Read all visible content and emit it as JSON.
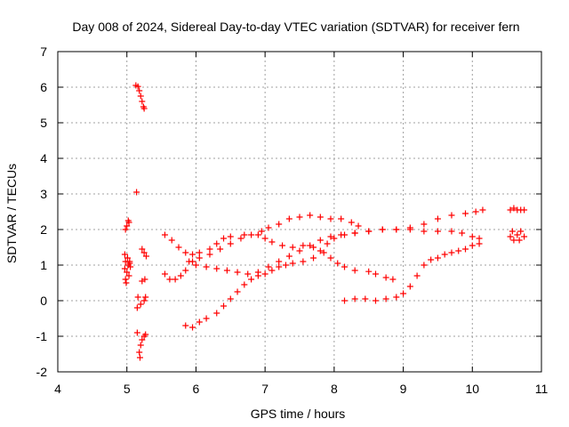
{
  "chart_data": {
    "type": "scatter",
    "title": "Day 008 of 2024, Sidereal Day-to-day VTEC variation (SDTVAR) for receiver fern",
    "xlabel": "GPS time / hours",
    "ylabel": "SDTVAR / TECUs",
    "xlim": [
      4,
      11
    ],
    "ylim": [
      -2,
      7
    ],
    "xticks": [
      "4",
      "5",
      "6",
      "7",
      "8",
      "9",
      "10",
      "11"
    ],
    "yticks": [
      "-2",
      "-1",
      "0",
      "1",
      "2",
      "3",
      "4",
      "5",
      "6",
      "7"
    ],
    "grid": true,
    "marker": "+",
    "marker_color": "#ff0000",
    "series": [
      {
        "name": "scatter-cluster-5h",
        "points": [
          [
            4.97,
            1.3
          ],
          [
            4.98,
            1.1
          ],
          [
            4.97,
            0.9
          ],
          [
            4.98,
            0.6
          ],
          [
            5.0,
            0.8
          ],
          [
            5.02,
            1.0
          ],
          [
            5.01,
            1.2
          ],
          [
            4.99,
            0.5
          ],
          [
            5.03,
            0.7
          ],
          [
            5.04,
            1.1
          ],
          [
            4.98,
            2.0
          ],
          [
            5.0,
            2.1
          ],
          [
            5.02,
            2.25
          ],
          [
            5.03,
            2.2
          ],
          [
            5.04,
            1.05
          ],
          [
            5.05,
            0.95
          ]
        ]
      },
      {
        "name": "scatter-cluster-5.2h",
        "points": [
          [
            5.13,
            6.05
          ],
          [
            5.16,
            6.02
          ],
          [
            5.18,
            5.9
          ],
          [
            5.2,
            5.75
          ],
          [
            5.22,
            5.6
          ],
          [
            5.24,
            5.45
          ],
          [
            5.25,
            5.4
          ],
          [
            5.14,
            3.05
          ],
          [
            5.16,
            0.1
          ],
          [
            5.15,
            -0.2
          ],
          [
            5.2,
            -0.1
          ],
          [
            5.25,
            0.0
          ],
          [
            5.27,
            0.1
          ],
          [
            5.22,
            0.55
          ],
          [
            5.26,
            0.6
          ],
          [
            5.22,
            1.45
          ],
          [
            5.25,
            1.35
          ],
          [
            5.28,
            1.25
          ],
          [
            5.15,
            -0.9
          ],
          [
            5.2,
            -1.25
          ],
          [
            5.18,
            -1.45
          ],
          [
            5.22,
            -1.1
          ],
          [
            5.25,
            -1.0
          ],
          [
            5.27,
            -0.95
          ],
          [
            5.19,
            -1.6
          ]
        ]
      },
      {
        "name": "arc-a",
        "points": [
          [
            5.55,
            1.85
          ],
          [
            5.65,
            1.7
          ],
          [
            5.75,
            1.5
          ],
          [
            5.85,
            1.35
          ],
          [
            5.95,
            1.3
          ],
          [
            6.05,
            1.35
          ],
          [
            6.2,
            1.45
          ],
          [
            6.3,
            1.6
          ],
          [
            6.4,
            1.75
          ],
          [
            6.5,
            1.8
          ],
          [
            6.7,
            1.85
          ],
          [
            6.9,
            1.85
          ],
          [
            7.0,
            1.75
          ],
          [
            7.1,
            1.65
          ],
          [
            7.25,
            1.55
          ],
          [
            7.4,
            1.5
          ],
          [
            7.55,
            1.55
          ],
          [
            7.7,
            1.5
          ],
          [
            7.85,
            1.35
          ],
          [
            7.95,
            1.2
          ],
          [
            8.05,
            1.05
          ],
          [
            8.15,
            0.95
          ],
          [
            8.3,
            0.85
          ],
          [
            8.5,
            0.82
          ],
          [
            8.6,
            0.75
          ],
          [
            8.75,
            0.65
          ],
          [
            8.85,
            0.6
          ]
        ]
      },
      {
        "name": "arc-b",
        "points": [
          [
            5.55,
            0.75
          ],
          [
            5.62,
            0.6
          ],
          [
            5.7,
            0.6
          ],
          [
            5.78,
            0.7
          ],
          [
            5.85,
            0.85
          ],
          [
            5.95,
            1.1
          ],
          [
            6.05,
            1.2
          ],
          [
            6.2,
            1.3
          ],
          [
            6.35,
            1.45
          ],
          [
            6.5,
            1.6
          ],
          [
            6.65,
            1.75
          ],
          [
            6.8,
            1.85
          ],
          [
            6.95,
            1.95
          ],
          [
            7.05,
            2.05
          ],
          [
            7.2,
            2.15
          ],
          [
            7.35,
            2.3
          ],
          [
            7.5,
            2.35
          ],
          [
            7.65,
            2.4
          ],
          [
            7.8,
            2.35
          ],
          [
            7.95,
            2.3
          ],
          [
            8.1,
            2.3
          ],
          [
            8.25,
            2.2
          ],
          [
            8.35,
            2.1
          ]
        ]
      },
      {
        "name": "arc-c",
        "points": [
          [
            5.85,
            -0.7
          ],
          [
            5.95,
            -0.75
          ],
          [
            6.05,
            -0.6
          ],
          [
            6.15,
            -0.5
          ],
          [
            6.3,
            -0.35
          ],
          [
            6.4,
            -0.15
          ],
          [
            6.5,
            0.05
          ],
          [
            6.6,
            0.25
          ],
          [
            6.7,
            0.45
          ],
          [
            6.8,
            0.6
          ],
          [
            6.9,
            0.7
          ],
          [
            7.0,
            0.75
          ],
          [
            7.1,
            0.85
          ],
          [
            7.2,
            0.95
          ],
          [
            7.3,
            1.0
          ],
          [
            7.4,
            1.05
          ],
          [
            7.55,
            1.1
          ],
          [
            7.7,
            1.2
          ],
          [
            7.8,
            1.4
          ],
          [
            7.9,
            1.6
          ],
          [
            8.0,
            1.75
          ],
          [
            8.15,
            1.85
          ],
          [
            8.3,
            1.9
          ],
          [
            8.5,
            1.95
          ],
          [
            8.7,
            2.0
          ],
          [
            8.9,
            2.0
          ],
          [
            9.1,
            2.0
          ],
          [
            9.3,
            1.95
          ],
          [
            9.5,
            1.95
          ],
          [
            9.7,
            1.95
          ],
          [
            9.85,
            1.9
          ],
          [
            10.0,
            1.8
          ],
          [
            10.1,
            1.75
          ]
        ]
      },
      {
        "name": "arc-d",
        "points": [
          [
            5.9,
            1.1
          ],
          [
            6.0,
            1.0
          ],
          [
            6.15,
            0.95
          ],
          [
            6.3,
            0.9
          ],
          [
            6.45,
            0.85
          ],
          [
            6.6,
            0.8
          ],
          [
            6.75,
            0.75
          ],
          [
            6.9,
            0.8
          ],
          [
            7.05,
            0.95
          ],
          [
            7.2,
            1.1
          ],
          [
            7.35,
            1.25
          ],
          [
            7.5,
            1.4
          ],
          [
            7.65,
            1.55
          ],
          [
            7.8,
            1.7
          ],
          [
            7.95,
            1.8
          ],
          [
            8.1,
            1.85
          ],
          [
            8.3,
            1.9
          ],
          [
            8.5,
            1.95
          ],
          [
            8.7,
            2.0
          ],
          [
            8.9,
            2.0
          ],
          [
            9.1,
            2.05
          ],
          [
            9.3,
            2.15
          ],
          [
            9.5,
            2.3
          ],
          [
            9.7,
            2.4
          ],
          [
            9.9,
            2.45
          ],
          [
            10.05,
            2.5
          ],
          [
            10.15,
            2.55
          ]
        ]
      },
      {
        "name": "arc-e",
        "points": [
          [
            8.15,
            0.0
          ],
          [
            8.3,
            0.05
          ],
          [
            8.45,
            0.05
          ],
          [
            8.6,
            0.0
          ],
          [
            8.75,
            0.05
          ],
          [
            8.9,
            0.1
          ],
          [
            9.0,
            0.2
          ],
          [
            9.1,
            0.4
          ],
          [
            9.2,
            0.7
          ],
          [
            9.3,
            1.0
          ],
          [
            9.4,
            1.15
          ],
          [
            9.5,
            1.2
          ],
          [
            9.6,
            1.3
          ],
          [
            9.7,
            1.35
          ],
          [
            9.8,
            1.4
          ],
          [
            9.9,
            1.45
          ],
          [
            10.0,
            1.55
          ],
          [
            10.1,
            1.6
          ]
        ]
      },
      {
        "name": "cluster-10.6h",
        "points": [
          [
            10.55,
            2.55
          ],
          [
            10.6,
            2.6
          ],
          [
            10.65,
            2.55
          ],
          [
            10.7,
            2.55
          ],
          [
            10.75,
            2.55
          ],
          [
            10.55,
            1.8
          ],
          [
            10.6,
            1.7
          ],
          [
            10.65,
            1.85
          ],
          [
            10.7,
            1.95
          ],
          [
            10.75,
            1.8
          ],
          [
            10.58,
            1.95
          ],
          [
            10.68,
            1.7
          ]
        ]
      }
    ]
  }
}
